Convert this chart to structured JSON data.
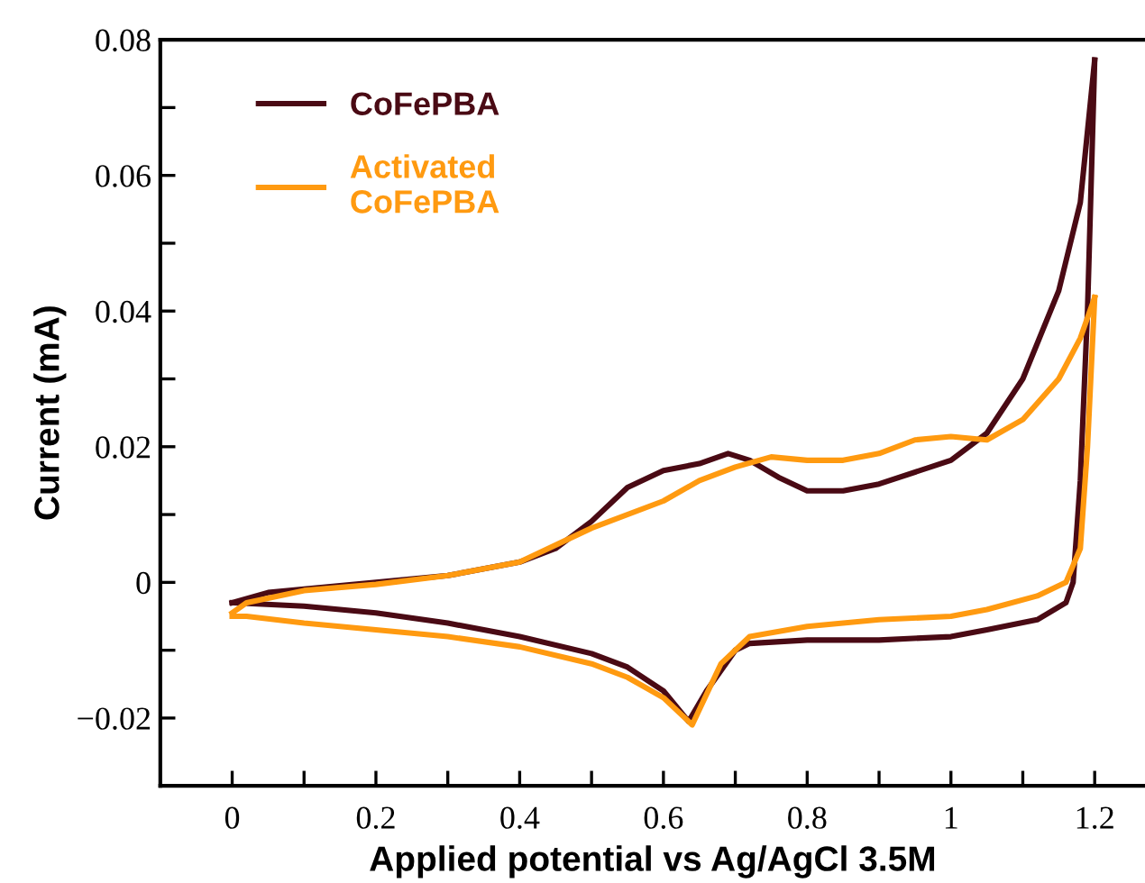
{
  "chart_data": {
    "type": "line",
    "xlabel": "Applied potential vs Ag/AgCl 3.5M",
    "ylabel": "Current (mA)",
    "xlim": [
      -0.1,
      1.27
    ],
    "ylim": [
      -0.03,
      0.08
    ],
    "xticks": [
      0,
      {
        "value": 0.1,
        "label": null
      },
      0.2,
      {
        "value": 0.3,
        "label": null
      },
      0.4,
      {
        "value": 0.5,
        "label": null
      },
      0.6,
      {
        "value": 0.7,
        "label": null
      },
      0.8,
      {
        "value": 0.9,
        "label": null
      },
      {
        "value": 1,
        "label": "1"
      },
      {
        "value": 1.1,
        "label": null
      },
      1.2
    ],
    "yticks": [
      {
        "value": -0.02,
        "label": "−0.02"
      },
      {
        "value": -0.01,
        "label": null
      },
      {
        "value": 0,
        "label": "0"
      },
      {
        "value": 0.01,
        "label": null
      },
      0.02,
      {
        "value": 0.03,
        "label": null
      },
      0.04,
      {
        "value": 0.05,
        "label": null
      },
      0.06,
      {
        "value": 0.07,
        "label": null
      },
      0.08
    ],
    "grid": false,
    "legend": "top left",
    "line_style": "solid",
    "marker": "none",
    "series": [
      {
        "name": "CoFePBA",
        "color": "#4a0a14",
        "x": [
          0,
          0.05,
          0.1,
          0.2,
          0.3,
          0.4,
          0.45,
          0.5,
          0.55,
          0.6,
          0.65,
          0.69,
          0.72,
          0.76,
          0.8,
          0.85,
          0.9,
          1.0,
          1.05,
          1.1,
          1.15,
          1.18,
          1.2
        ],
        "values": [
          -0.003,
          -0.0015,
          -0.001,
          0.0,
          0.001,
          0.003,
          0.005,
          0.009,
          0.014,
          0.0165,
          0.0175,
          0.019,
          0.018,
          0.0155,
          0.0135,
          0.0135,
          0.0145,
          0.018,
          0.022,
          0.03,
          0.043,
          0.056,
          0.077
        ]
      },
      {
        "color": "#4a0a14",
        "x": [
          1.2,
          1.19,
          1.18,
          1.17,
          1.16,
          1.12,
          1.05,
          1.0,
          0.9,
          0.8,
          0.72,
          0.7,
          0.66,
          0.635,
          0.6,
          0.55,
          0.5,
          0.4,
          0.3,
          0.2,
          0.1,
          0.0
        ],
        "values": [
          0.077,
          0.04,
          0.015,
          0.0,
          -0.003,
          -0.0055,
          -0.007,
          -0.008,
          -0.0085,
          -0.0085,
          -0.009,
          -0.01,
          -0.016,
          -0.0205,
          -0.016,
          -0.0125,
          -0.0105,
          -0.008,
          -0.006,
          -0.0045,
          -0.0035,
          -0.003
        ]
      },
      {
        "name": "Activated\nCoFePBA",
        "color": "#ff9a10",
        "x": [
          0,
          0.02,
          0.1,
          0.2,
          0.3,
          0.4,
          0.5,
          0.6,
          0.65,
          0.7,
          0.75,
          0.8,
          0.85,
          0.9,
          0.95,
          1.0,
          1.05,
          1.1,
          1.15,
          1.18,
          1.2
        ],
        "values": [
          -0.0045,
          -0.003,
          -0.0012,
          -0.0003,
          0.001,
          0.003,
          0.008,
          0.012,
          0.015,
          0.017,
          0.0185,
          0.018,
          0.018,
          0.019,
          0.021,
          0.0215,
          0.021,
          0.024,
          0.03,
          0.036,
          0.042
        ]
      },
      {
        "color": "#ff9a10",
        "x": [
          1.2,
          1.19,
          1.18,
          1.16,
          1.12,
          1.05,
          1.0,
          0.9,
          0.8,
          0.72,
          0.68,
          0.64,
          0.6,
          0.55,
          0.5,
          0.4,
          0.3,
          0.2,
          0.1,
          0.02,
          0.0
        ],
        "values": [
          0.042,
          0.02,
          0.005,
          0.0,
          -0.002,
          -0.004,
          -0.005,
          -0.0055,
          -0.0065,
          -0.008,
          -0.012,
          -0.021,
          -0.017,
          -0.014,
          -0.012,
          -0.0095,
          -0.008,
          -0.007,
          -0.006,
          -0.005,
          -0.005
        ]
      }
    ]
  }
}
